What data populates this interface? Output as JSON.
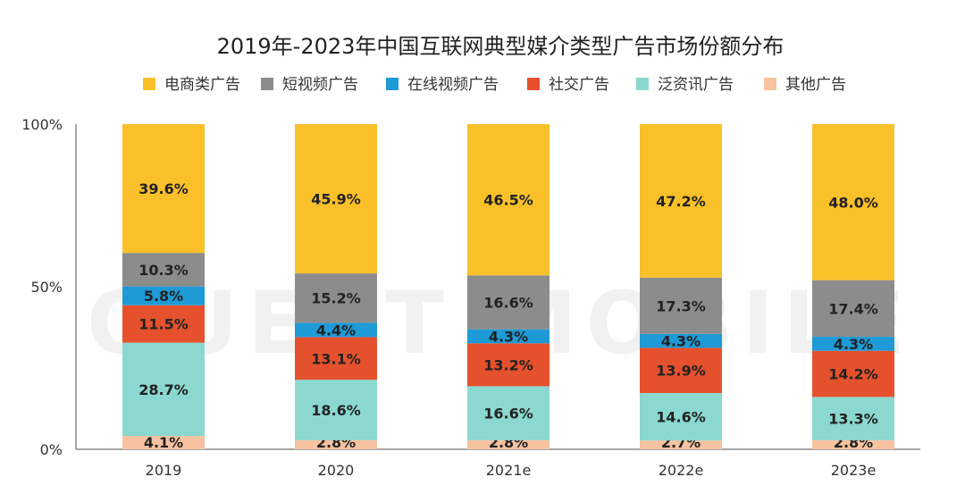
{
  "watermark": "QUEST MOBILE",
  "chart_data": {
    "type": "bar",
    "stacked": true,
    "title": "2019年-2023年中国互联网典型媒介类型广告市场份额分布",
    "xlabel": "",
    "ylabel": "",
    "ylim": [
      0,
      100
    ],
    "y_ticks": [
      "0%",
      "50%",
      "100%"
    ],
    "grid": false,
    "legend_position": "top",
    "categories": [
      "2019",
      "2020",
      "2021e",
      "2022e",
      "2023e"
    ],
    "series": [
      {
        "name": "其他广告",
        "color": "#f6c2a0",
        "values": [
          4.1,
          2.8,
          2.8,
          2.7,
          2.8
        ],
        "labels": [
          "4.1%",
          "2.8%",
          "2.8%",
          "2.7%",
          "2.8%"
        ]
      },
      {
        "name": "泛资讯广告",
        "color": "#8ad8d0",
        "values": [
          28.7,
          18.6,
          16.6,
          14.6,
          13.3
        ],
        "labels": [
          "28.7%",
          "18.6%",
          "16.6%",
          "14.6%",
          "13.3%"
        ]
      },
      {
        "name": "社交广告",
        "color": "#e5512d",
        "values": [
          11.5,
          13.1,
          13.2,
          13.9,
          14.2
        ],
        "labels": [
          "11.5%",
          "13.1%",
          "13.2%",
          "13.9%",
          "14.2%"
        ]
      },
      {
        "name": "在线视频广告",
        "color": "#1e9ad6",
        "values": [
          5.8,
          4.4,
          4.3,
          4.3,
          4.3
        ],
        "labels": [
          "5.8%",
          "4.4%",
          "4.3%",
          "4.3%",
          "4.3%"
        ]
      },
      {
        "name": "短视频广告",
        "color": "#8c8c8c",
        "values": [
          10.3,
          15.2,
          16.6,
          17.3,
          17.4
        ],
        "labels": [
          "10.3%",
          "15.2%",
          "16.6%",
          "17.3%",
          "17.4%"
        ]
      },
      {
        "name": "电商类广告",
        "color": "#f9c02a",
        "values": [
          39.6,
          45.9,
          46.5,
          47.2,
          48.0
        ],
        "labels": [
          "39.6%",
          "45.9%",
          "46.5%",
          "47.2%",
          "48.0%"
        ]
      }
    ],
    "legend_order": [
      "电商类广告",
      "短视频广告",
      "在线视频广告",
      "社交广告",
      "泛资讯广告",
      "其他广告"
    ]
  }
}
